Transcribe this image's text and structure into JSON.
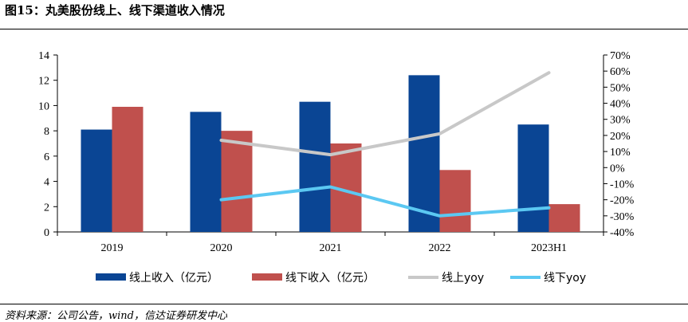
{
  "figure": {
    "title": "图15：丸美股份线上、线下渠道收入情况",
    "source": "资料来源：公司公告，wind，信达证券研发中心"
  },
  "chart_data": {
    "type": "bar",
    "categories": [
      "2019",
      "2020",
      "2021",
      "2022",
      "2023H1"
    ],
    "ylim": [
      0,
      14
    ],
    "y_ticks": [
      "0",
      "2",
      "4",
      "6",
      "8",
      "10",
      "12",
      "14"
    ],
    "y2lim": [
      -40,
      70
    ],
    "y2_ticks": [
      "-40%",
      "-30%",
      "-20%",
      "-10%",
      "0%",
      "10%",
      "20%",
      "30%",
      "40%",
      "50%",
      "60%",
      "70%"
    ],
    "series": [
      {
        "name": "线上收入（亿元）",
        "kind": "bar",
        "axis": "left",
        "color": "#0a4594",
        "values": [
          8.1,
          9.5,
          10.3,
          12.4,
          8.5
        ]
      },
      {
        "name": "线下收入（亿元）",
        "kind": "bar",
        "axis": "left",
        "color": "#c0504d",
        "values": [
          9.9,
          8.0,
          7.0,
          4.9,
          2.2
        ]
      },
      {
        "name": "线上yoy",
        "kind": "line",
        "axis": "right",
        "color": "#c8c8c8",
        "values": [
          null,
          17,
          8,
          21,
          59
        ]
      },
      {
        "name": "线下yoy",
        "kind": "line",
        "axis": "right",
        "color": "#5bc8f2",
        "values": [
          null,
          -20,
          -12,
          -30,
          -25
        ]
      }
    ],
    "legend_position": "bottom"
  }
}
